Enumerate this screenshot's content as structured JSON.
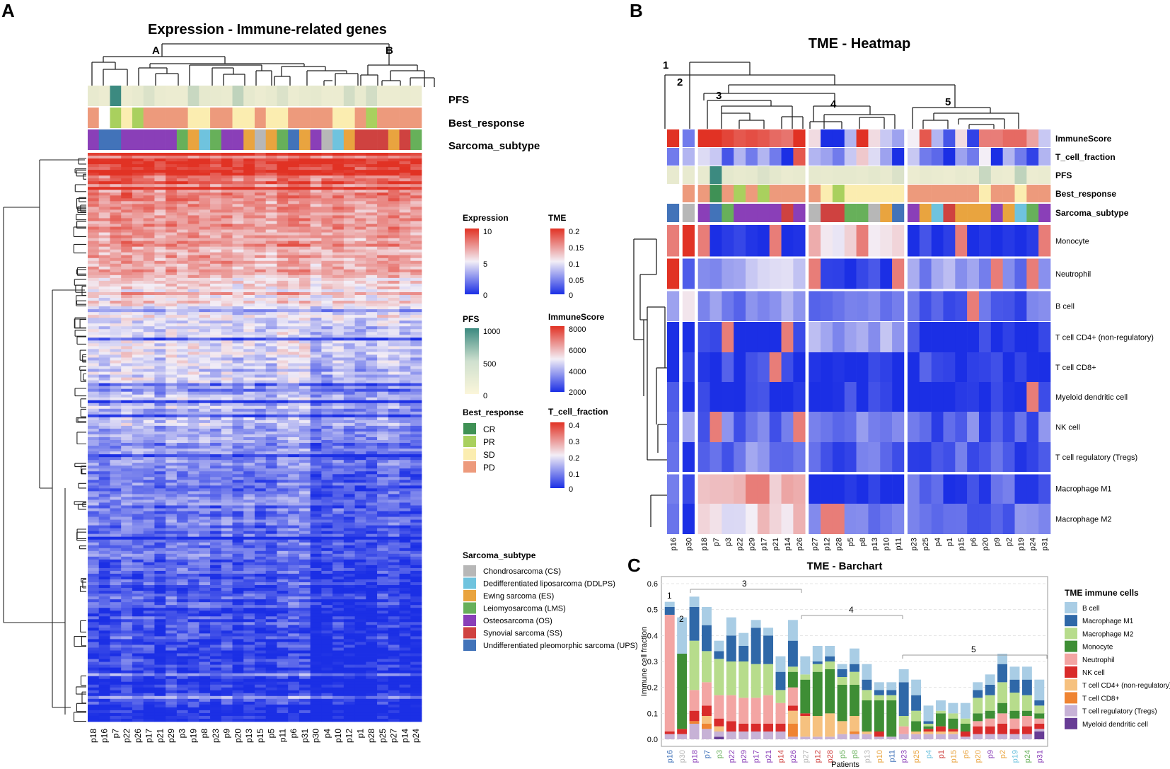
{
  "colors": {
    "subtype": {
      "CS": "#b7b7b7",
      "DDLPS": "#6fc3de",
      "ES": "#e9a43f",
      "LMS": "#67b05a",
      "OS": "#8a3fb8",
      "SS": "#cf4240",
      "UPS": "#4273b9"
    },
    "response": {
      "CR": "#3f9155",
      "PR": "#a9d05e",
      "SD": "#fbedb0",
      "PD": "#ed9a7c"
    },
    "heat": {
      "low": "#1b2fe5",
      "mid": "#f3eef6",
      "high": "#e13224"
    },
    "pfs": {
      "low": "#f7f2d6",
      "high": "#3c8a80"
    },
    "cells": {
      "B cell": "#a9cde5",
      "Macrophage M1": "#2f68a8",
      "Macrophage M2": "#b7dc8c",
      "Monocyte": "#3e8e35",
      "Neutrophil": "#f3a5a3",
      "NK cell": "#d92b2a",
      "T cell CD4+ (non-regulatory)": "#f6c17f",
      "T cell CD8+": "#ef8432",
      "T cell regulatory (Tregs)": "#c7b2d6",
      "Myeloid dendritic cell": "#673c95"
    }
  },
  "panelA": {
    "label": "A",
    "title": "Expression - Immune-related genes",
    "cluster_labels": [
      "A",
      "B"
    ],
    "annotation_rows": [
      "PFS",
      "Best_response",
      "Sarcoma_subtype"
    ],
    "patients": [
      "p18",
      "p16",
      "p7",
      "p22",
      "p26",
      "p17",
      "p21",
      "p29",
      "p3",
      "p19",
      "p8",
      "p23",
      "p9",
      "p20",
      "p13",
      "p15",
      "p5",
      "p11",
      "p6",
      "p31",
      "p30",
      "p4",
      "p10",
      "p12",
      "p1",
      "p28",
      "p25",
      "p27",
      "p14",
      "p24"
    ],
    "pfs": [
      80,
      60,
      1000,
      60,
      80,
      150,
      70,
      60,
      60,
      250,
      90,
      80,
      70,
      300,
      90,
      60,
      80,
      150,
      60,
      80,
      90,
      60,
      60,
      200,
      80,
      200,
      60,
      60,
      70,
      60
    ],
    "response": [
      "PD",
      "",
      "PR",
      "SD",
      "PR",
      "PD",
      "PD",
      "PD",
      "PD",
      "SD",
      "SD",
      "PD",
      "PD",
      "SD",
      "SD",
      "PD",
      "SD",
      "SD",
      "PD",
      "PD",
      "PD",
      "PD",
      "SD",
      "SD",
      "PD",
      "PR",
      "PD",
      "PD",
      "PD",
      "PD"
    ],
    "subtype": [
      "OS",
      "UPS",
      "UPS",
      "OS",
      "OS",
      "OS",
      "OS",
      "OS",
      "LMS",
      "ES",
      "DDLPS",
      "LMS",
      "OS",
      "OS",
      "ES",
      "CS",
      "ES",
      "LMS",
      "UPS",
      "ES",
      "OS",
      "CS",
      "DDLPS",
      "ES",
      "SS",
      "SS",
      "SS",
      "ES",
      "SS",
      "LMS"
    ]
  },
  "legendA": {
    "expression": {
      "title": "Expression",
      "ticks": [
        "10",
        "5",
        "0"
      ]
    },
    "tme": {
      "title": "TME",
      "ticks": [
        "0.2",
        "0.15",
        "0.1",
        "0.05",
        "0"
      ]
    },
    "pfs": {
      "title": "PFS",
      "ticks": [
        "1000",
        "500",
        "0"
      ]
    },
    "immunescore": {
      "title": "ImmuneScore",
      "ticks": [
        "8000",
        "6000",
        "4000",
        "2000"
      ]
    },
    "best_response": {
      "title": "Best_response",
      "items": [
        "CR",
        "PR",
        "SD",
        "PD"
      ]
    },
    "tcell_fraction": {
      "title": "T_cell_fraction",
      "ticks": [
        "0.4",
        "0.3",
        "0.2",
        "0.1",
        "0"
      ]
    },
    "sarcoma_subtype": {
      "title": "Sarcoma_subtype",
      "items": [
        {
          "key": "CS",
          "label": "Chondrosarcoma (CS)"
        },
        {
          "key": "DDLPS",
          "label": "Dedifferentiated liposarcoma (DDLPS)"
        },
        {
          "key": "ES",
          "label": "Ewing sarcoma (ES)"
        },
        {
          "key": "LMS",
          "label": "Leiomyosarcoma (LMS)"
        },
        {
          "key": "OS",
          "label": "Osteosarcoma (OS)"
        },
        {
          "key": "SS",
          "label": "Synovial sarcoma (SS)"
        },
        {
          "key": "UPS",
          "label": "Undifferentiated pleomorphic sarcoma (UPS)"
        }
      ]
    }
  },
  "panelB": {
    "label": "B",
    "title": "TME - Heatmap",
    "cluster_labels": [
      "1",
      "2",
      "3",
      "4",
      "5"
    ],
    "patients": [
      "p16",
      "p30",
      "p18",
      "p7",
      "p3",
      "p22",
      "p29",
      "p17",
      "p21",
      "p14",
      "p26",
      "p27",
      "p12",
      "p28",
      "p5",
      "p8",
      "p13",
      "p10",
      "p11",
      "p23",
      "p25",
      "p4",
      "p1",
      "p15",
      "p6",
      "p20",
      "p9",
      "p2",
      "p19",
      "p24",
      "p31"
    ],
    "annotation_rows": [
      "ImmuneScore",
      "T_cell_fraction",
      "PFS",
      "Best_response",
      "Sarcoma_subtype"
    ],
    "cell_rows": [
      "Monocyte",
      "Neutrophil",
      "B cell",
      "T cell CD4+ (non-regulatory)",
      "T cell CD8+",
      "Myeloid dendritic cell",
      "NK cell",
      "T cell regulatory (Tregs)",
      "Macrophage M1",
      "Macrophage M2"
    ],
    "immunescore": [
      1.0,
      -0.6,
      1.0,
      1.0,
      0.9,
      0.8,
      0.85,
      0.8,
      0.7,
      0.65,
      1.0,
      0.1,
      -1.0,
      -1.0,
      -0.3,
      1.0,
      0.1,
      -0.2,
      -0.4,
      0.0,
      0.8,
      -0.3,
      -0.8,
      0.1,
      -0.9,
      0.6,
      0.6,
      0.7,
      0.7,
      0.4,
      -0.2
    ],
    "tcell_fraction": [
      -0.6,
      -0.3,
      -0.1,
      -0.2,
      -0.8,
      -0.3,
      -0.6,
      -0.3,
      -0.6,
      -1.0,
      0.8,
      -0.3,
      -0.4,
      -0.6,
      -0.2,
      0.2,
      -0.1,
      -0.4,
      -1.0,
      -0.2,
      -0.6,
      -0.7,
      -1.0,
      -0.4,
      -0.6,
      0.0,
      -1.0,
      -0.3,
      -0.6,
      -0.9,
      -0.3
    ],
    "pfs": [
      80,
      80,
      80,
      1000,
      100,
      80,
      90,
      150,
      100,
      70,
      80,
      90,
      80,
      90,
      90,
      80,
      100,
      80,
      150,
      60,
      80,
      70,
      60,
      80,
      70,
      250,
      70,
      60,
      300,
      60,
      70
    ],
    "response": [
      "",
      "PD",
      "PD",
      "CR",
      "PD",
      "PR",
      "PD",
      "PR",
      "PD",
      "PD",
      "PD",
      "PD",
      "SD",
      "PR",
      "SD",
      "SD",
      "SD",
      "SD",
      "SD",
      "PD",
      "PD",
      "PD",
      "PD",
      "PD",
      "PD",
      "SD",
      "PD",
      "PD",
      "SD",
      "PD",
      "PD"
    ],
    "subtype": [
      "UPS",
      "CS",
      "OS",
      "UPS",
      "LMS",
      "OS",
      "OS",
      "OS",
      "OS",
      "SS",
      "OS",
      "CS",
      "SS",
      "SS",
      "LMS",
      "LMS",
      "CS",
      "ES",
      "UPS",
      "OS",
      "ES",
      "DDLPS",
      "SS",
      "ES",
      "ES",
      "ES",
      "OS",
      "ES",
      "DDLPS",
      "LMS",
      "OS"
    ]
  },
  "panelC": {
    "label": "C",
    "cluster_labels": [
      "1",
      "2",
      "3",
      "4",
      "5"
    ]
  },
  "chart_data": {
    "type": "bar",
    "title": "TME - Barchart",
    "xlabel": "Patients",
    "ylabel": "Immune cell fraction",
    "ylim": [
      0,
      0.6
    ],
    "yticks": [
      "0.0",
      "0.1",
      "0.2",
      "0.3",
      "0.4",
      "0.5",
      "0.6"
    ],
    "legend_title": "TME immune cells",
    "legend_position": "right",
    "stacked": true,
    "categories": [
      "p16",
      "p30",
      "p18",
      "p7",
      "p3",
      "p22",
      "p29",
      "p17",
      "p21",
      "p14",
      "p26",
      "p27",
      "p12",
      "p28",
      "p5",
      "p8",
      "p13",
      "p10",
      "p11",
      "p23",
      "p25",
      "p4",
      "p1",
      "p15",
      "p6",
      "p20",
      "p9",
      "p2",
      "p19",
      "p24",
      "p31"
    ],
    "category_subtypes": [
      "UPS",
      "CS",
      "OS",
      "UPS",
      "LMS",
      "OS",
      "OS",
      "OS",
      "OS",
      "SS",
      "OS",
      "CS",
      "SS",
      "SS",
      "LMS",
      "LMS",
      "CS",
      "ES",
      "UPS",
      "OS",
      "ES",
      "DDLPS",
      "SS",
      "ES",
      "ES",
      "ES",
      "OS",
      "ES",
      "DDLPS",
      "LMS",
      "OS"
    ],
    "series": [
      {
        "name": "Myeloid dendritic cell",
        "values": [
          0,
          0,
          0,
          0,
          0.01,
          0,
          0,
          0,
          0,
          0,
          0,
          0,
          0,
          0,
          0,
          0,
          0,
          0,
          0,
          0,
          0,
          0,
          0,
          0,
          0,
          0,
          0,
          0,
          0,
          0,
          0.03
        ]
      },
      {
        "name": "T cell regulatory (Tregs)",
        "values": [
          0.02,
          0.02,
          0.06,
          0.04,
          0.02,
          0.03,
          0.03,
          0.03,
          0.03,
          0.03,
          0.01,
          0.01,
          0.01,
          0.01,
          0.02,
          0.02,
          0.02,
          0.01,
          0.01,
          0.02,
          0.02,
          0.02,
          0.02,
          0.02,
          0.01,
          0.02,
          0.02,
          0.02,
          0.02,
          0.02,
          0.01
        ]
      },
      {
        "name": "T cell CD8+",
        "values": [
          0,
          0,
          0.01,
          0.02,
          0,
          0,
          0,
          0,
          0,
          0,
          0.05,
          0,
          0,
          0,
          0,
          0.01,
          0,
          0,
          0,
          0,
          0,
          0,
          0,
          0,
          0,
          0,
          0,
          0,
          0,
          0,
          0
        ]
      },
      {
        "name": "T cell CD4+ (non-regulatory)",
        "values": [
          0,
          0,
          0,
          0.03,
          0.02,
          0,
          0,
          0,
          0,
          0,
          0.05,
          0.08,
          0.08,
          0.09,
          0.05,
          0.06,
          0.01,
          0,
          0,
          0,
          0.01,
          0.01,
          0.01,
          0.01,
          0,
          0,
          0,
          0,
          0,
          0,
          0
        ]
      },
      {
        "name": "NK cell",
        "values": [
          0.01,
          0.02,
          0.04,
          0.04,
          0.03,
          0.04,
          0.03,
          0.03,
          0.03,
          0.03,
          0.02,
          0.01,
          0,
          0,
          0,
          0,
          0,
          0.02,
          0,
          0,
          0,
          0.01,
          0.02,
          0.01,
          0.02,
          0.03,
          0.03,
          0.04,
          0.02,
          0.03,
          0.02
        ]
      },
      {
        "name": "Neutrophil",
        "values": [
          0.45,
          0,
          0.08,
          0.09,
          0.09,
          0.1,
          0.1,
          0.1,
          0.11,
          0.08,
          0.07,
          0,
          0,
          0,
          0,
          0,
          0,
          0,
          0,
          0.03,
          0,
          0,
          0,
          0,
          0,
          0.02,
          0.03,
          0.04,
          0.04,
          0.04,
          0.02
        ]
      },
      {
        "name": "Monocyte",
        "values": [
          0,
          0.29,
          0,
          0,
          0,
          0,
          0,
          0,
          0,
          0,
          0.06,
          0.13,
          0.17,
          0.17,
          0.14,
          0.12,
          0.12,
          0.12,
          0.14,
          0,
          0.04,
          0.01,
          0.05,
          0.04,
          0.03,
          0.03,
          0.03,
          0.04,
          0.03,
          0.02,
          0.02
        ]
      },
      {
        "name": "Macrophage M2",
        "values": [
          0,
          0,
          0.19,
          0.12,
          0.14,
          0.13,
          0.14,
          0.13,
          0.12,
          0.05,
          0.02,
          0.02,
          0.03,
          0.03,
          0.03,
          0.05,
          0.04,
          0.02,
          0.02,
          0.04,
          0.04,
          0.01,
          0.01,
          0.02,
          0.02,
          0.06,
          0.06,
          0.08,
          0.07,
          0.06,
          0.03
        ]
      },
      {
        "name": "Macrophage M1",
        "values": [
          0.03,
          0,
          0.13,
          0.1,
          0.03,
          0.1,
          0.06,
          0.14,
          0.11,
          0.07,
          0.1,
          0,
          0.01,
          0.02,
          0.03,
          0.03,
          0.04,
          0.02,
          0.02,
          0.13,
          0.06,
          0.01,
          0,
          0,
          0,
          0.03,
          0.04,
          0.07,
          0.05,
          0.06,
          0.02
        ]
      },
      {
        "name": "B cell",
        "values": [
          0.02,
          0.14,
          0.04,
          0.07,
          0.04,
          0.07,
          0.05,
          0.03,
          0.03,
          0.06,
          0.08,
          0.07,
          0.06,
          0.04,
          0.02,
          0.06,
          0.06,
          0.03,
          0.03,
          0.05,
          0.06,
          0.06,
          0.04,
          0.04,
          0.06,
          0.03,
          0.04,
          0.04,
          0.05,
          0.05,
          0.08
        ]
      }
    ]
  }
}
